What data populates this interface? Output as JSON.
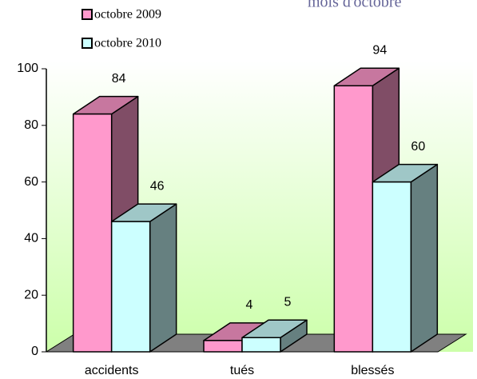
{
  "chart_data": {
    "type": "bar3d",
    "title": "mois d'octobre",
    "categories": [
      "accidents",
      "tués",
      "blessés"
    ],
    "series": [
      {
        "name": "octobre 2009",
        "color": "#ff99cc",
        "values": [
          84,
          4,
          94
        ]
      },
      {
        "name": "octobre 2010",
        "color": "#ccffff",
        "values": [
          46,
          5,
          60
        ]
      }
    ],
    "ylim": [
      0,
      100
    ],
    "yticks": [
      0,
      20,
      40,
      60,
      80,
      100
    ],
    "legend": "top-left"
  }
}
